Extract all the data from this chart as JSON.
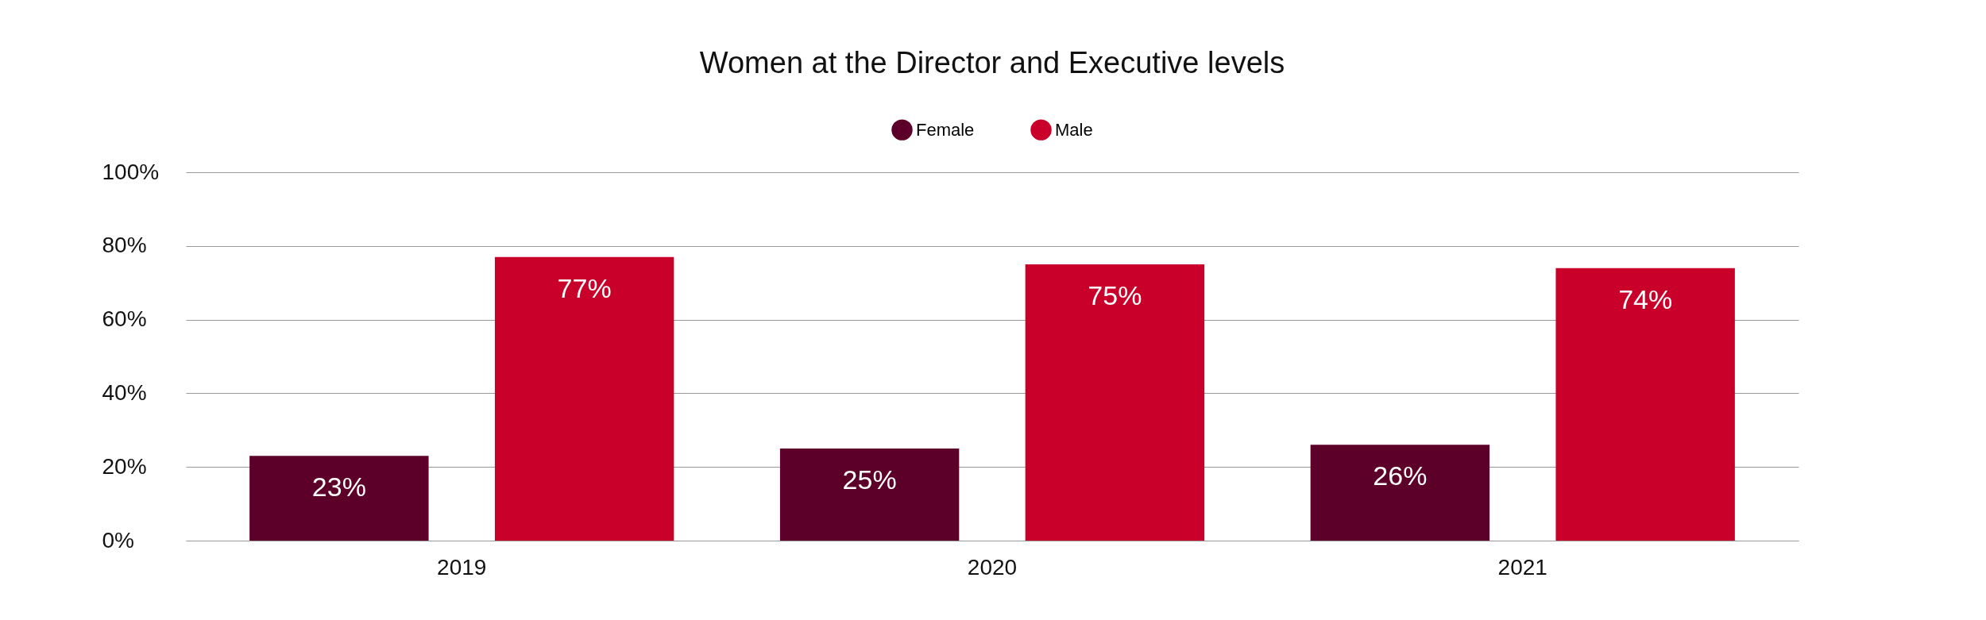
{
  "chart_data": {
    "type": "bar",
    "title": "Women at the Director and Executive levels",
    "categories": [
      "2019",
      "2020",
      "2021"
    ],
    "series": [
      {
        "name": "Female",
        "color": "#5c0029",
        "values": [
          23,
          25,
          26
        ],
        "value_labels": [
          "23%",
          "25%",
          "26%"
        ]
      },
      {
        "name": "Male",
        "color": "#c8002a",
        "values": [
          77,
          75,
          74
        ],
        "value_labels": [
          "77%",
          "75%",
          "74%"
        ]
      }
    ],
    "ylim": [
      0,
      100
    ],
    "yticks": [
      {
        "value": 0,
        "label": "0%"
      },
      {
        "value": 20,
        "label": "20%"
      },
      {
        "value": 40,
        "label": "40%"
      },
      {
        "value": 60,
        "label": "60%"
      },
      {
        "value": 80,
        "label": "80%"
      },
      {
        "value": 100,
        "label": "100%"
      }
    ],
    "grid": "y",
    "legend": "top"
  }
}
